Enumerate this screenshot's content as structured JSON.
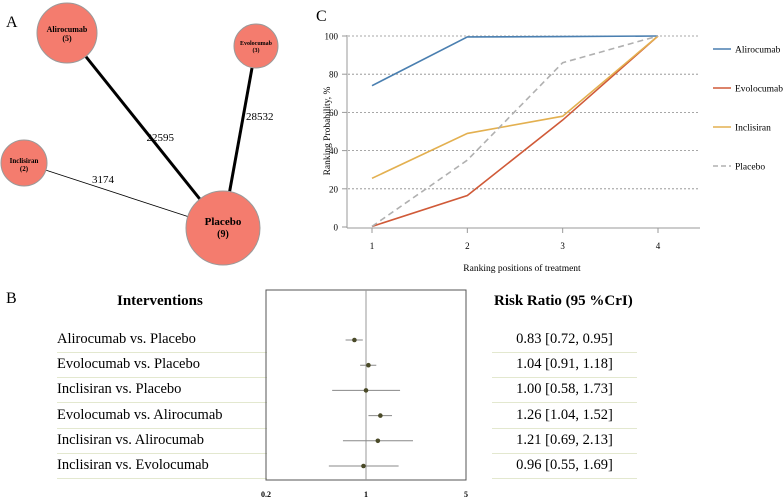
{
  "panels": {
    "a": "A",
    "b": "B",
    "c": "C"
  },
  "colors": {
    "node_fill": "#f47c6e",
    "node_stroke": "#9a9a9a",
    "alirocumab": "#4a7fb0",
    "evolocumab": "#d05a38",
    "inclisiran": "#e3b050",
    "placebo": "#b0b0b0",
    "point": "#4a4a28"
  },
  "network": {
    "nodes": [
      {
        "name": "Alirocumab",
        "count": "(5)"
      },
      {
        "name": "Evolocumab",
        "count": "(3)"
      },
      {
        "name": "Inclisiran",
        "count": "(2)"
      },
      {
        "name": "Placebo",
        "count": "(9)"
      }
    ],
    "edges": [
      {
        "from": "Alirocumab",
        "to": "Placebo",
        "label": "22595"
      },
      {
        "from": "Evolocumab",
        "to": "Placebo",
        "label": "28532"
      },
      {
        "from": "Inclisiran",
        "to": "Placebo",
        "label": "3174"
      }
    ]
  },
  "chart_data": [
    {
      "type": "line",
      "title": "",
      "xlabel": "Ranking positions of treatment",
      "ylabel": "Ranking Probability, %",
      "x": [
        1,
        2,
        3,
        4
      ],
      "ylim": [
        0,
        100
      ],
      "yticks": [
        0,
        20,
        40,
        60,
        80,
        100
      ],
      "grid": "horizontal dashed",
      "legend": "right",
      "series": [
        {
          "name": "Alirocumab",
          "values": [
            74,
            99.5,
            99.7,
            100
          ],
          "style": "solid"
        },
        {
          "name": "Evolocumab",
          "values": [
            0.3,
            16.5,
            56,
            100
          ],
          "style": "solid"
        },
        {
          "name": "Inclisiran",
          "values": [
            25.5,
            49,
            58,
            100
          ],
          "style": "solid"
        },
        {
          "name": "Placebo",
          "values": [
            0.3,
            35,
            86,
            100
          ],
          "style": "dashed"
        }
      ]
    },
    {
      "type": "forest",
      "scale": "log",
      "xlim": [
        0.2,
        5
      ],
      "xticks": [
        "0.2",
        "1",
        "5"
      ],
      "reference_line": 1,
      "header_left": "Interventions",
      "header_right": "Risk Ratio (95 %CrI)",
      "rows": [
        {
          "label": "Alirocumab vs. Placebo",
          "rr": 0.83,
          "lo": 0.72,
          "hi": 0.95,
          "text": "0.83 [0.72, 0.95]"
        },
        {
          "label": "Evolocumab vs. Placebo",
          "rr": 1.04,
          "lo": 0.91,
          "hi": 1.18,
          "text": "1.04 [0.91, 1.18]"
        },
        {
          "label": "Inclisiran vs. Placebo",
          "rr": 1.0,
          "lo": 0.58,
          "hi": 1.73,
          "text": "1.00 [0.58, 1.73]"
        },
        {
          "label": "Evolocumab vs. Alirocumab",
          "rr": 1.26,
          "lo": 1.04,
          "hi": 1.52,
          "text": "1.26 [1.04, 1.52]"
        },
        {
          "label": "Inclisiran vs. Alirocumab",
          "rr": 1.21,
          "lo": 0.69,
          "hi": 2.13,
          "text": "1.21 [0.69, 2.13]"
        },
        {
          "label": "Inclisiran vs. Evolocumab",
          "rr": 0.96,
          "lo": 0.55,
          "hi": 1.69,
          "text": "0.96 [0.55, 1.69]"
        }
      ]
    }
  ]
}
